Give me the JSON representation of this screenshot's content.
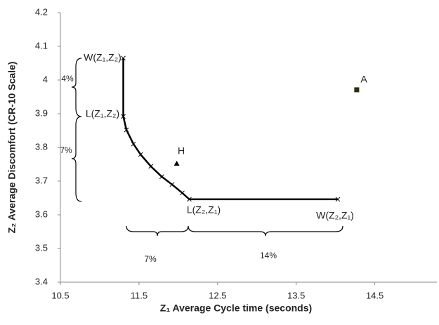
{
  "chart_data": {
    "type": "scatter",
    "x_label": "Z₁ Average Cycle time (seconds)",
    "y_label": "Z₂ Average Discomfort (CR-10 Scale)",
    "xlim": [
      10.5,
      15.29
    ],
    "xticks": [
      10.5,
      11.5,
      12.5,
      13.5,
      14.5
    ],
    "ylim": [
      3.4,
      4.2
    ],
    "yticks": [
      3.4,
      3.5,
      3.6,
      3.7,
      3.8,
      3.9,
      4,
      4.1,
      4.2
    ],
    "grid": false,
    "series": [
      {
        "color": "#000000",
        "marker": "x",
        "line": true,
        "x": [
          11.3,
          11.3,
          11.34,
          11.43,
          11.52,
          11.65,
          11.79,
          11.92,
          12.05,
          12.14,
          14.03
        ],
        "values": [
          4.065,
          3.892,
          3.852,
          3.81,
          3.779,
          3.744,
          3.713,
          3.69,
          3.665,
          3.646,
          3.646
        ]
      },
      {
        "color": "#2e2a14",
        "marker": "square",
        "line": false,
        "x": [
          14.27
        ],
        "values": [
          3.971
        ]
      },
      {
        "color": "#000000",
        "marker": "triangle",
        "line": false,
        "x": [
          11.98
        ],
        "values": [
          3.752
        ]
      }
    ],
    "annotations": [
      "W(Z₁,Z₂)",
      "L(Z₁,Z₂)",
      "L(Z₂,Z₁)",
      "W(Z₂,Z₁)",
      "A",
      "H",
      "4%",
      "7%",
      "7%",
      "14%"
    ]
  }
}
